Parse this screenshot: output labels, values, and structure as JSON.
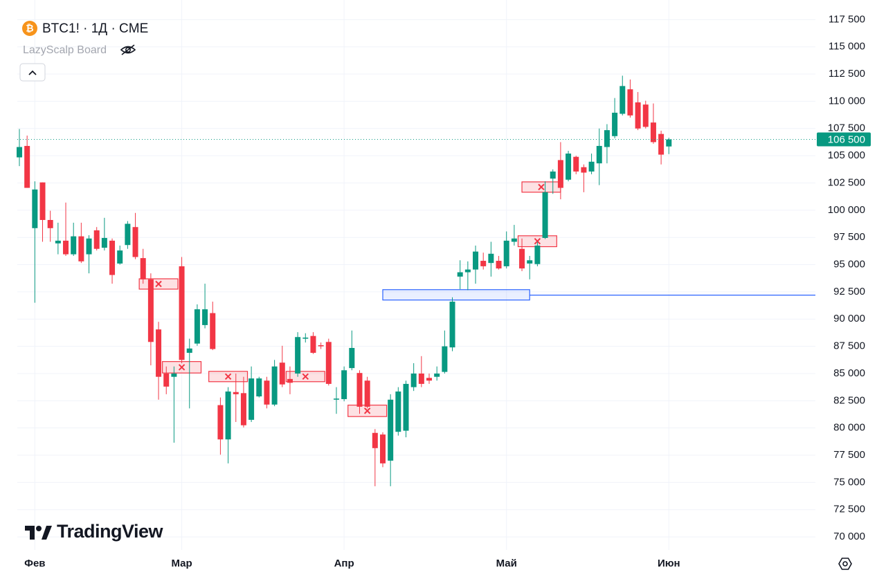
{
  "chart_data": {
    "type": "candlestick",
    "title": "BTC1! · 1Д · CME",
    "subtitle": "LazyScalp Board",
    "brand": "TradingView",
    "up_color": "#089981",
    "down_color": "#f23645",
    "grid": true,
    "categories": [
      null,
      null,
      "Фев",
      null,
      null,
      null,
      null,
      null,
      null,
      null,
      null,
      null,
      null,
      null,
      null,
      null,
      null,
      null,
      null,
      null,
      null,
      "Мар",
      null,
      null,
      null,
      null,
      null,
      null,
      null,
      null,
      null,
      null,
      null,
      null,
      null,
      null,
      null,
      null,
      null,
      null,
      null,
      null,
      "Апр",
      null,
      null,
      null,
      null,
      null,
      null,
      null,
      null,
      null,
      null,
      null,
      null,
      null,
      null,
      null,
      null,
      null,
      null,
      null,
      null,
      "Май",
      null,
      null,
      null,
      null,
      null,
      null,
      null,
      null,
      null,
      null,
      null,
      null,
      null,
      null,
      null,
      null,
      null,
      null,
      null,
      null,
      "Июн"
    ],
    "open": [
      104850,
      105900,
      98350,
      102550,
      99100,
      96950,
      97200,
      95950,
      97600,
      95950,
      98150,
      96550,
      97200,
      95100,
      96800,
      98450,
      95600,
      93650,
      89050,
      85000,
      84700,
      94850,
      86900,
      87750,
      89450,
      90550,
      82100,
      78950,
      83300,
      83200,
      80750,
      82900,
      84350,
      82150,
      86000,
      84500,
      85000,
      88200,
      88450,
      87600,
      87900,
      82600,
      82650,
      85500,
      85050,
      84350,
      79550,
      79400,
      77000,
      79650,
      79750,
      83750,
      85000,
      84600,
      84700,
      85150,
      87400,
      93900,
      94300,
      94550,
      95350,
      95150,
      95350,
      94850,
      97100,
      96450,
      95100,
      95050,
      97450,
      102900,
      104600,
      102800,
      104900,
      103950,
      103550,
      104300,
      105800,
      106800,
      108850,
      111100,
      109900,
      109700,
      108050,
      107000,
      105850
    ],
    "high": [
      107450,
      106850,
      102650,
      102550,
      99950,
      98850,
      100700,
      98850,
      98850,
      97700,
      98450,
      99300,
      97400,
      96750,
      99000,
      99750,
      96450,
      94200,
      89750,
      85650,
      85650,
      95700,
      88200,
      91350,
      93250,
      91600,
      82800,
      83750,
      85000,
      84700,
      85650,
      84700,
      84700,
      86250,
      87550,
      85650,
      88800,
      88700,
      88800,
      87850,
      88200,
      83750,
      85650,
      88950,
      85300,
      84700,
      79900,
      79600,
      83100,
      83750,
      84350,
      85950,
      86600,
      85000,
      85650,
      88950,
      92000,
      95400,
      95300,
      96750,
      96100,
      97100,
      95800,
      98050,
      98650,
      97400,
      95800,
      97100,
      102650,
      103750,
      106250,
      105450,
      105000,
      104200,
      105200,
      107500,
      107900,
      110300,
      112350,
      112000,
      110850,
      110050,
      109800,
      107300,
      106650
    ],
    "low": [
      104050,
      102050,
      91500,
      97100,
      97100,
      95950,
      95800,
      95800,
      95150,
      94200,
      96300,
      96300,
      93250,
      95000,
      96450,
      95500,
      93250,
      85750,
      82600,
      83100,
      78650,
      85950,
      81800,
      87550,
      89150,
      87150,
      77550,
      76750,
      80550,
      80050,
      80550,
      82800,
      81800,
      82000,
      83750,
      83100,
      84700,
      87850,
      86800,
      87250,
      83900,
      81300,
      82450,
      85300,
      81300,
      81800,
      74650,
      76400,
      74650,
      79300,
      79150,
      83400,
      83750,
      84050,
      84350,
      85000,
      87050,
      92750,
      92650,
      93250,
      94550,
      93900,
      94550,
      94650,
      96750,
      94400,
      93650,
      94850,
      97350,
      101500,
      101000,
      102650,
      103300,
      101650,
      103300,
      102300,
      104300,
      106600,
      108700,
      108500,
      107350,
      107500,
      106100,
      104200,
      105150
    ],
    "close": [
      105800,
      102050,
      101900,
      99100,
      98350,
      97200,
      95950,
      97600,
      95300,
      97400,
      96450,
      97450,
      94050,
      96300,
      98750,
      95700,
      93650,
      87900,
      84700,
      83800,
      85000,
      86250,
      87300,
      90900,
      90900,
      87250,
      78950,
      83350,
      83100,
      80250,
      84550,
      84550,
      82150,
      85650,
      84000,
      84150,
      88350,
      88300,
      86900,
      87500,
      84050,
      82700,
      85300,
      87350,
      81950,
      81950,
      78150,
      76750,
      82600,
      83350,
      84050,
      85000,
      84050,
      84350,
      85000,
      87500,
      91600,
      94300,
      94550,
      96200,
      94850,
      96000,
      94650,
      97200,
      97400,
      94650,
      95400,
      96750,
      101650,
      103550,
      102050,
      105200,
      103550,
      103450,
      104450,
      105900,
      107350,
      108950,
      111400,
      108700,
      107500,
      107650,
      106250,
      105100,
      106500
    ],
    "ylim": [
      68800,
      119300
    ],
    "yticks": [
      {
        "value": 70000,
        "label": "70 000"
      },
      {
        "value": 72500,
        "label": "72 500"
      },
      {
        "value": 75000,
        "label": "75 000"
      },
      {
        "value": 77500,
        "label": "77 500"
      },
      {
        "value": 80000,
        "label": "80 000"
      },
      {
        "value": 82500,
        "label": "82 500"
      },
      {
        "value": 85000,
        "label": "85 000"
      },
      {
        "value": 87500,
        "label": "87 500"
      },
      {
        "value": 90000,
        "label": "90 000"
      },
      {
        "value": 92500,
        "label": "92 500"
      },
      {
        "value": 95000,
        "label": "95 000"
      },
      {
        "value": 97500,
        "label": "97 500"
      },
      {
        "value": 100000,
        "label": "100 000"
      },
      {
        "value": 102500,
        "label": "102 500"
      },
      {
        "value": 105000,
        "label": "105 000"
      },
      {
        "value": 107500,
        "label": "107 500"
      },
      {
        "value": 110000,
        "label": "110 000"
      },
      {
        "value": 112500,
        "label": "112 500"
      },
      {
        "value": 115000,
        "label": "115 000"
      },
      {
        "value": 117500,
        "label": "117 500"
      }
    ],
    "last_price": {
      "value": 106500,
      "label": "106 500"
    },
    "zones": [
      {
        "x": [
          15.5,
          20.5
        ],
        "range": [
          92750,
          93700
        ],
        "color": "#f23645"
      },
      {
        "x": [
          18.5,
          23.5
        ],
        "range": [
          85050,
          86100
        ],
        "color": "#f23645"
      },
      {
        "x": [
          24.5,
          29.5
        ],
        "range": [
          84250,
          85200
        ],
        "color": "#f23645"
      },
      {
        "x": [
          34.5,
          39.5
        ],
        "range": [
          84250,
          85200
        ],
        "color": "#f23645"
      },
      {
        "x": [
          42.5,
          47.5
        ],
        "range": [
          81050,
          82100
        ],
        "color": "#f23645"
      },
      {
        "x": [
          64.5,
          69.5
        ],
        "range": [
          96650,
          97650
        ],
        "color": "#f23645"
      },
      {
        "x": [
          65,
          70
        ],
        "range": [
          101650,
          102600
        ],
        "color": "#f23645"
      },
      {
        "x": [
          47,
          66
        ],
        "range": [
          91750,
          92700
        ],
        "color": "#2962ff",
        "ray": 92200
      }
    ]
  }
}
